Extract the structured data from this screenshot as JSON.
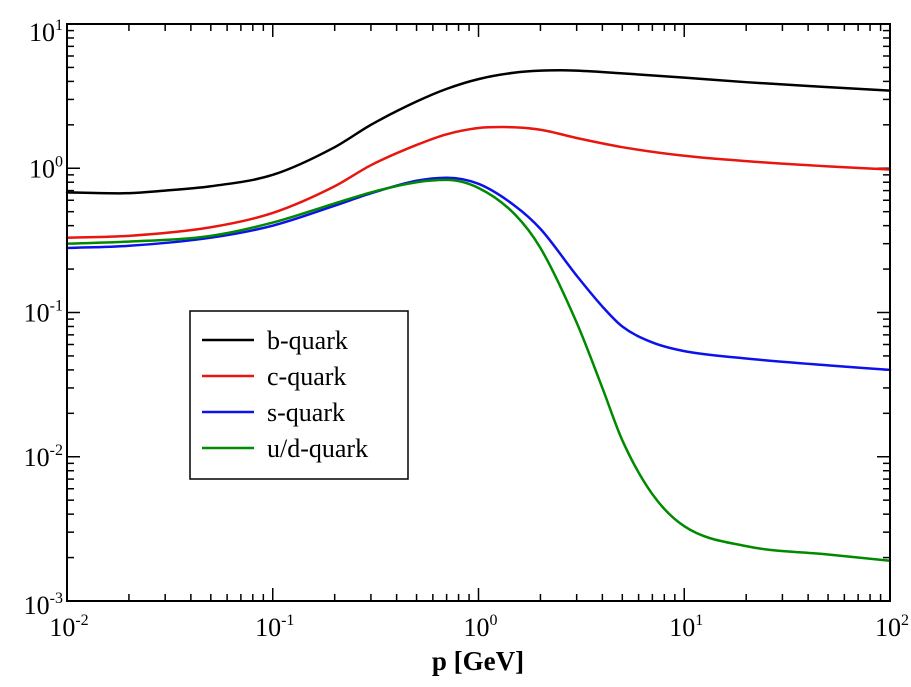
{
  "chart_data": {
    "type": "line",
    "title": "",
    "xlabel": "p [GeV]",
    "ylabel": "",
    "xscale": "log",
    "yscale": "log",
    "xlim": [
      0.01,
      100
    ],
    "ylim": [
      0.001,
      10
    ],
    "grid": false,
    "legend_position": "center-left",
    "x_ticks": [
      {
        "base": "10",
        "exp": "-2"
      },
      {
        "base": "10",
        "exp": "-1"
      },
      {
        "base": "10",
        "exp": "0"
      },
      {
        "base": "10",
        "exp": "1"
      },
      {
        "base": "10",
        "exp": "2"
      }
    ],
    "y_ticks": [
      {
        "base": "10",
        "exp": "-3"
      },
      {
        "base": "10",
        "exp": "-2"
      },
      {
        "base": "10",
        "exp": "-1"
      },
      {
        "base": "10",
        "exp": "0"
      },
      {
        "base": "10",
        "exp": "1"
      }
    ],
    "series": [
      {
        "name": "b-quark",
        "color": "#000000",
        "x": [
          0.01,
          0.018,
          0.03,
          0.05,
          0.1,
          0.2,
          0.3,
          0.5,
          0.7,
          1.0,
          1.5,
          2.0,
          2.5,
          3.0,
          5.0,
          10,
          20,
          50,
          100
        ],
        "y": [
          0.68,
          0.67,
          0.7,
          0.75,
          0.9,
          1.4,
          2.0,
          2.9,
          3.55,
          4.15,
          4.6,
          4.75,
          4.78,
          4.75,
          4.55,
          4.25,
          3.95,
          3.65,
          3.45
        ]
      },
      {
        "name": "c-quark",
        "color": "#e8160e",
        "x": [
          0.01,
          0.02,
          0.05,
          0.1,
          0.2,
          0.3,
          0.5,
          0.7,
          1.0,
          1.3,
          2.0,
          3.0,
          5.0,
          10,
          20,
          50,
          100
        ],
        "y": [
          0.33,
          0.34,
          0.39,
          0.49,
          0.75,
          1.05,
          1.45,
          1.72,
          1.9,
          1.93,
          1.85,
          1.62,
          1.4,
          1.22,
          1.12,
          1.03,
          0.98
        ]
      },
      {
        "name": "s-quark",
        "color": "#0e12ea",
        "x": [
          0.01,
          0.02,
          0.05,
          0.1,
          0.2,
          0.3,
          0.5,
          0.7,
          1.0,
          1.5,
          2.0,
          3.0,
          4.0,
          5.0,
          7.0,
          10,
          20,
          50,
          100
        ],
        "y": [
          0.28,
          0.29,
          0.33,
          0.4,
          0.55,
          0.67,
          0.82,
          0.86,
          0.78,
          0.55,
          0.38,
          0.18,
          0.11,
          0.08,
          0.062,
          0.054,
          0.048,
          0.043,
          0.04
        ]
      },
      {
        "name": "u/d-quark",
        "color": "#008a00",
        "x": [
          0.01,
          0.02,
          0.05,
          0.1,
          0.2,
          0.3,
          0.5,
          0.7,
          1.0,
          1.5,
          2.0,
          3.0,
          4.0,
          5.0,
          7.0,
          10,
          20,
          50,
          100
        ],
        "y": [
          0.3,
          0.31,
          0.34,
          0.42,
          0.57,
          0.68,
          0.8,
          0.83,
          0.73,
          0.48,
          0.28,
          0.085,
          0.03,
          0.013,
          0.0055,
          0.0033,
          0.0024,
          0.0021,
          0.0019
        ]
      }
    ]
  }
}
